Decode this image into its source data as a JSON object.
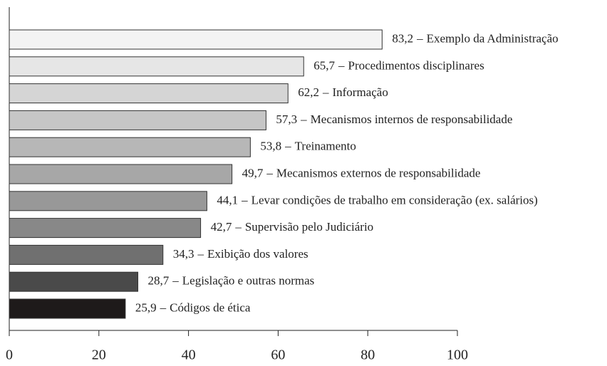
{
  "chart_data": {
    "type": "bar",
    "orientation": "horizontal",
    "categories": [
      "Exemplo da Administração",
      "Procedimentos disciplinares",
      "Informação",
      "Mecanismos internos de responsabilidade",
      "Treinamento",
      "Mecanismos externos de responsabilidade",
      "Levar condições de trabalho em consideração (ex. salários)",
      "Supervisão pelo Judiciário",
      "Exibição dos valores",
      "Legislação e outras normas",
      "Códigos de ética"
    ],
    "values": [
      83.2,
      65.7,
      62.2,
      57.3,
      53.8,
      49.7,
      44.1,
      42.7,
      34.3,
      28.7,
      25.9
    ],
    "value_labels": [
      "83,2",
      "65,7",
      "62,2",
      "57,3",
      "53,8",
      "49,7",
      "44,1",
      "42,7",
      "34,3",
      "28,7",
      "25,9"
    ],
    "label_separator": "–",
    "colors": [
      "#f3f3f3",
      "#e6e6e6",
      "#d5d5d5",
      "#c6c6c6",
      "#b7b7b7",
      "#a7a7a7",
      "#989898",
      "#888888",
      "#707070",
      "#4a4a4a",
      "#1e1a1a"
    ],
    "xlim": [
      0,
      100
    ],
    "xticks": [
      0,
      20,
      40,
      60,
      80,
      100
    ]
  }
}
